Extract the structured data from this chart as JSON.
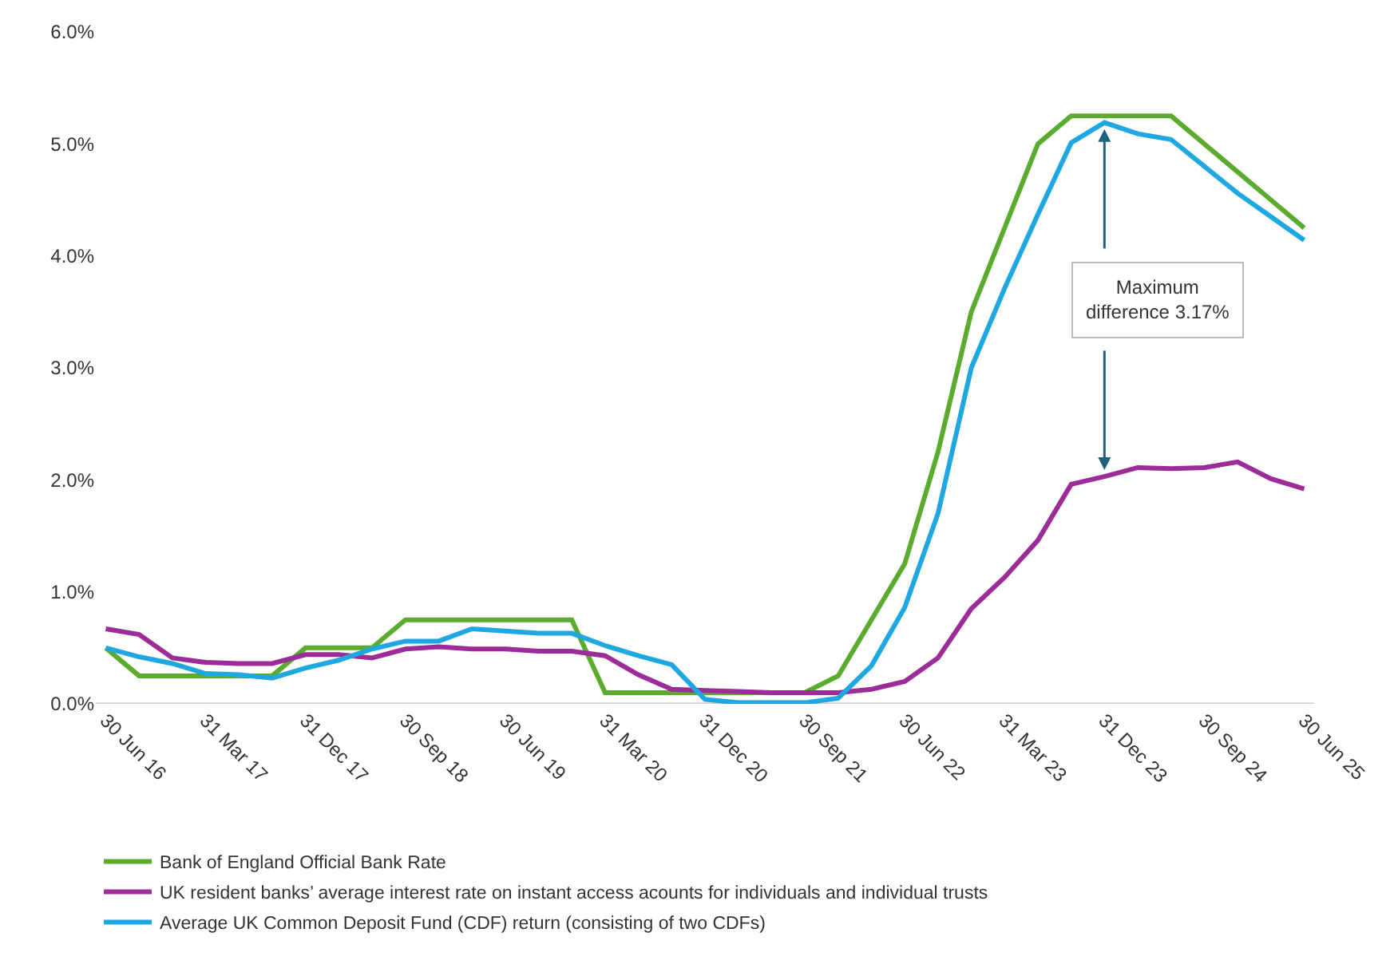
{
  "chart_data": {
    "type": "line",
    "categories": [
      "30 Jun 16",
      null,
      null,
      "31 Mar 17",
      null,
      null,
      "31 Dec 17",
      null,
      null,
      "30 Sep 18",
      null,
      null,
      "30 Jun 19",
      null,
      null,
      "31 Mar 20",
      null,
      null,
      "31 Dec 20",
      null,
      null,
      "30 Sep 21",
      null,
      null,
      "30 Jun 22",
      null,
      null,
      "31 Mar 23",
      null,
      null,
      "31 Dec 23",
      null,
      null,
      "30 Sep 24",
      null,
      null,
      "30 Jun 25"
    ],
    "series": [
      {
        "name": "Bank of England Official Bank Rate",
        "color": "#5aab2e",
        "values": [
          0.5,
          0.25,
          0.25,
          0.25,
          0.25,
          0.25,
          0.5,
          0.5,
          0.5,
          0.75,
          0.75,
          0.75,
          0.75,
          0.75,
          0.75,
          0.1,
          0.1,
          0.1,
          0.1,
          0.1,
          0.1,
          0.1,
          0.25,
          0.75,
          1.25,
          2.25,
          3.5,
          4.25,
          5.0,
          5.25,
          5.25,
          5.25,
          5.25,
          5.0,
          4.75,
          4.5,
          4.25
        ]
      },
      {
        "name": "UK resident banks’ average interest rate on instant access acounts for individuals and individual trusts",
        "color": "#9b2c98",
        "values": [
          0.67,
          0.62,
          0.41,
          0.37,
          0.36,
          0.36,
          0.44,
          0.44,
          0.41,
          0.49,
          0.51,
          0.49,
          0.49,
          0.47,
          0.47,
          0.43,
          0.26,
          0.13,
          0.12,
          0.11,
          0.1,
          0.1,
          0.1,
          0.13,
          0.2,
          0.41,
          0.85,
          1.13,
          1.46,
          1.96,
          2.03,
          2.11,
          2.1,
          2.11,
          2.16,
          2.01,
          1.92
        ]
      },
      {
        "name": "Average UK Common Deposit Fund (CDF) return (consisting of two CDFs)",
        "color": "#1ea7e0",
        "values": [
          0.5,
          0.42,
          0.36,
          0.27,
          0.26,
          0.23,
          0.32,
          0.39,
          0.49,
          0.56,
          0.56,
          0.67,
          0.65,
          0.63,
          0.63,
          0.52,
          0.43,
          0.35,
          0.04,
          0.01,
          0.01,
          0.01,
          0.05,
          0.34,
          0.86,
          1.7,
          3.0,
          3.71,
          4.37,
          5.01,
          5.19,
          5.09,
          5.04,
          4.8,
          4.56,
          4.35,
          4.14
        ]
      }
    ],
    "ylim": [
      0,
      6
    ],
    "yticks": [
      {
        "value": 0,
        "label": "0.0%"
      },
      {
        "value": 1,
        "label": "1.0%"
      },
      {
        "value": 2,
        "label": "2.0%"
      },
      {
        "value": 3,
        "label": "3.0%"
      },
      {
        "value": 4,
        "label": "4.0%"
      },
      {
        "value": 5,
        "label": "5.0%"
      },
      {
        "value": 6,
        "label": "6.0%"
      }
    ],
    "grid": false,
    "legend": "bottom",
    "marker": "none",
    "line_style": "solid",
    "annotations": [
      "Maximum difference 3.17%"
    ]
  }
}
